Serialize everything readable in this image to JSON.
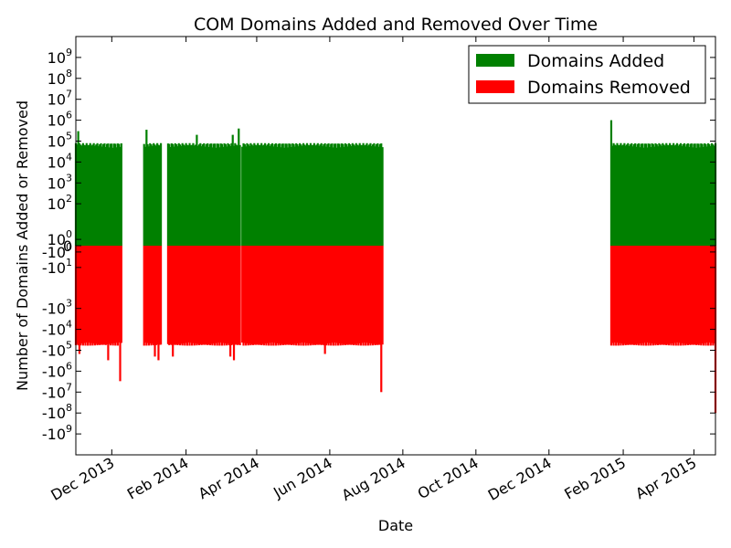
{
  "chart_data": {
    "type": "bar",
    "title": "COM Domains Added and Removed Over Time",
    "xlabel": "Date",
    "ylabel": "Number of Domains Added or Removed",
    "yscale": "symlog",
    "xlim": [
      "2013-11-01",
      "2015-04-19"
    ],
    "ylim_exponent": [
      -9,
      9
    ],
    "x_ticks": [
      "Dec 2013",
      "Feb 2014",
      "Apr 2014",
      "Jun 2014",
      "Aug 2014",
      "Oct 2014",
      "Dec 2014",
      "Feb 2015",
      "Apr 2015"
    ],
    "x_tick_dates": [
      "2013-12-01",
      "2014-02-01",
      "2014-04-01",
      "2014-06-01",
      "2014-08-01",
      "2014-10-01",
      "2014-12-01",
      "2015-02-01",
      "2015-04-01"
    ],
    "y_ticks": [
      {
        "base": "10",
        "exp": "9",
        "value": 1000000000.0
      },
      {
        "base": "10",
        "exp": "8",
        "value": 100000000.0
      },
      {
        "base": "10",
        "exp": "7",
        "value": 10000000.0
      },
      {
        "base": "10",
        "exp": "6",
        "value": 1000000.0
      },
      {
        "base": "10",
        "exp": "5",
        "value": 100000.0
      },
      {
        "base": "10",
        "exp": "4",
        "value": 10000.0
      },
      {
        "base": "10",
        "exp": "3",
        "value": 1000.0
      },
      {
        "base": "10",
        "exp": "2",
        "value": 100.0
      },
      {
        "base": "10",
        "exp": "0",
        "value": 1
      },
      {
        "base": "0",
        "exp": "",
        "value": 0
      },
      {
        "base": "-10",
        "exp": "0",
        "value": -1
      },
      {
        "base": "-10",
        "exp": "1",
        "value": -10
      },
      {
        "base": "-10",
        "exp": "3",
        "value": -1000.0
      },
      {
        "base": "-10",
        "exp": "4",
        "value": -10000.0
      },
      {
        "base": "-10",
        "exp": "5",
        "value": -100000.0
      },
      {
        "base": "-10",
        "exp": "6",
        "value": -1000000.0
      },
      {
        "base": "-10",
        "exp": "7",
        "value": -10000000.0
      },
      {
        "base": "-10",
        "exp": "8",
        "value": -100000000.0
      },
      {
        "base": "-10",
        "exp": "9",
        "value": -1000000000.0
      }
    ],
    "series": [
      {
        "name": "Domains Added",
        "color": "#008000",
        "typical_value": 80000
      },
      {
        "name": "Domains Removed",
        "color": "#ff0000",
        "typical_value": -60000
      }
    ],
    "date_ranges": [
      {
        "start": "2013-11-01",
        "end": "2013-12-09"
      },
      {
        "start": "2013-12-28",
        "end": "2014-01-11"
      },
      {
        "start": "2014-01-17",
        "end": "2014-03-18"
      },
      {
        "start": "2014-03-20",
        "end": "2014-07-15"
      },
      {
        "start": "2015-01-22",
        "end": "2015-04-19"
      }
    ],
    "outliers": [
      {
        "date": "2013-11-03",
        "added": 300000
      },
      {
        "date": "2013-11-04",
        "removed": -150000
      },
      {
        "date": "2013-11-28",
        "removed": -300000
      },
      {
        "date": "2013-12-08",
        "removed": -3000000
      },
      {
        "date": "2013-12-30",
        "added": 350000
      },
      {
        "date": "2014-01-06",
        "removed": -200000
      },
      {
        "date": "2014-01-09",
        "removed": -300000
      },
      {
        "date": "2014-01-16",
        "added": 250000
      },
      {
        "date": "2014-01-21",
        "removed": -200000
      },
      {
        "date": "2014-02-10",
        "added": 200000
      },
      {
        "date": "2014-03-10",
        "removed": -200000
      },
      {
        "date": "2014-03-12",
        "added": 200000
      },
      {
        "date": "2014-03-13",
        "removed": -300000
      },
      {
        "date": "2014-03-17",
        "added": 400000
      },
      {
        "date": "2014-05-28",
        "removed": -150000
      },
      {
        "date": "2014-07-14",
        "removed": -10000000
      },
      {
        "date": "2015-01-22",
        "added": 1000000
      },
      {
        "date": "2015-04-19",
        "removed": -100000000
      }
    ],
    "legend_position": "upper right",
    "grid": false
  }
}
